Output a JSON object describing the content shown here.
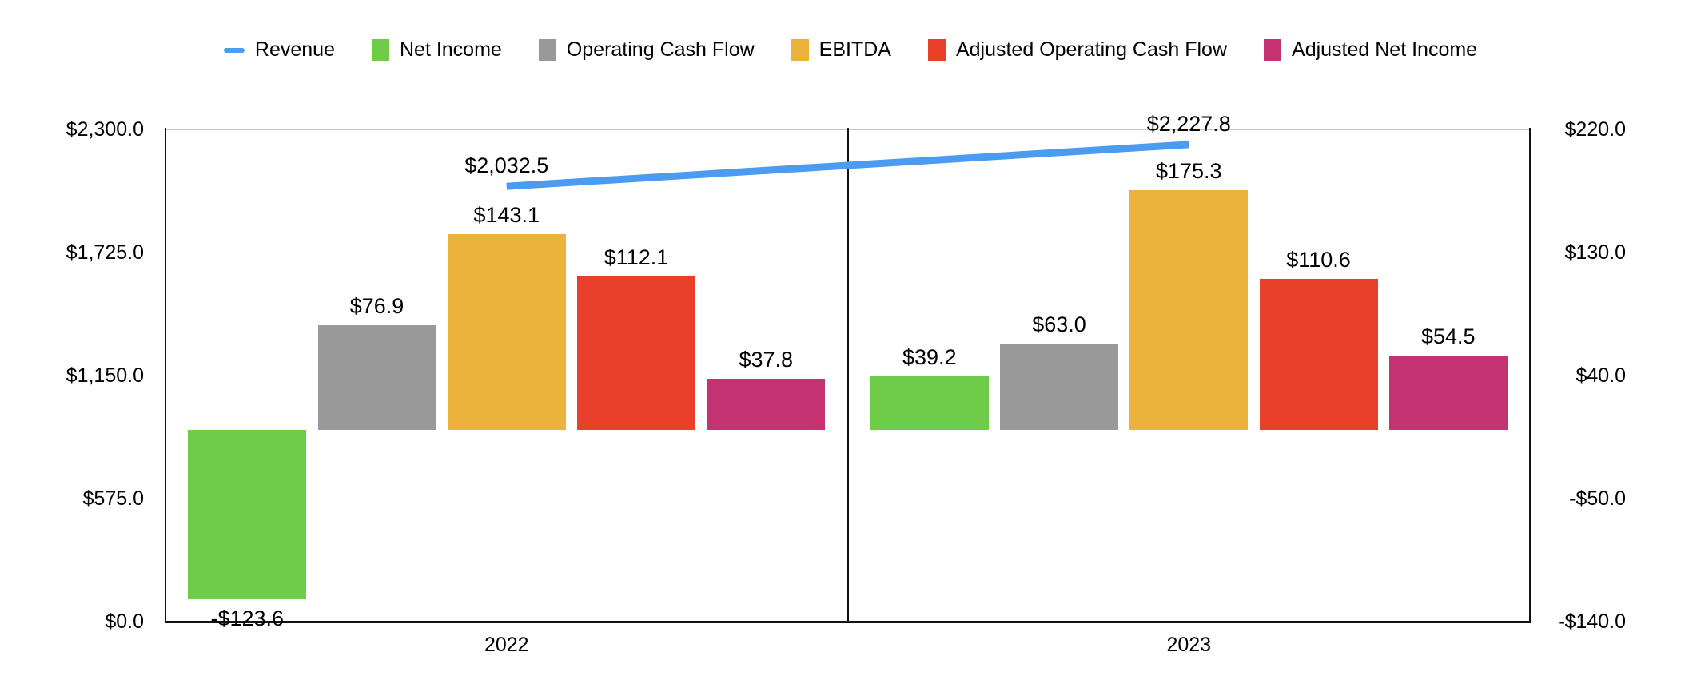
{
  "legend": {
    "items": [
      {
        "label": "Revenue",
        "color": "#4B9BF1",
        "swatch": "line"
      },
      {
        "label": "Net Income",
        "color": "#6ECC48",
        "swatch": "square"
      },
      {
        "label": "Operating Cash Flow",
        "color": "#999999",
        "swatch": "square"
      },
      {
        "label": "EBITDA",
        "color": "#ECB33C",
        "swatch": "square"
      },
      {
        "label": "Adjusted Operating Cash Flow",
        "color": "#E8402A",
        "swatch": "square"
      },
      {
        "label": "Adjusted Net Income",
        "color": "#C43272",
        "swatch": "square"
      }
    ]
  },
  "chart_data": {
    "type": "combo-bar-line",
    "categories": [
      "2022",
      "2023"
    ],
    "bar_series": [
      {
        "name": "Net Income",
        "color": "#6ECC48",
        "axis": "right",
        "values": [
          -123.6,
          39.2
        ],
        "labels": [
          "-$123.6",
          "$39.2"
        ]
      },
      {
        "name": "Operating Cash Flow",
        "color": "#999999",
        "axis": "right",
        "values": [
          76.9,
          63.0
        ],
        "labels": [
          "$76.9",
          "$63.0"
        ]
      },
      {
        "name": "EBITDA",
        "color": "#ECB33C",
        "axis": "right",
        "values": [
          143.1,
          175.3
        ],
        "labels": [
          "$143.1",
          "$175.3"
        ]
      },
      {
        "name": "Adjusted Operating Cash Flow",
        "color": "#E8402A",
        "axis": "right",
        "values": [
          112.1,
          110.6
        ],
        "labels": [
          "$112.1",
          "$110.6"
        ]
      },
      {
        "name": "Adjusted Net Income",
        "color": "#C43272",
        "axis": "right",
        "values": [
          37.8,
          54.5
        ],
        "labels": [
          "$37.8",
          "$54.5"
        ]
      }
    ],
    "line_series": {
      "name": "Revenue",
      "color": "#4B9BF1",
      "axis": "left",
      "values": [
        2032.5,
        2227.8
      ],
      "labels": [
        "$2,032.5",
        "$2,227.8"
      ]
    },
    "left_axis": {
      "min": 0,
      "max": 2300,
      "tick_values": [
        0,
        575,
        1150,
        1725,
        2300
      ],
      "ticks": [
        "$0.0",
        "$575.0",
        "$1,150.0",
        "$1,725.0",
        "$2,300.0"
      ]
    },
    "right_axis": {
      "min": -140,
      "max": 220,
      "tick_values": [
        -140,
        -50,
        40,
        130,
        220
      ],
      "ticks": [
        "-$140.0",
        "-$50.0",
        "$40.0",
        "$130.0",
        "$220.0"
      ]
    },
    "grid": "horizontal-on",
    "legend_position": "top",
    "title": "",
    "xlabel": "",
    "ylabel": ""
  }
}
